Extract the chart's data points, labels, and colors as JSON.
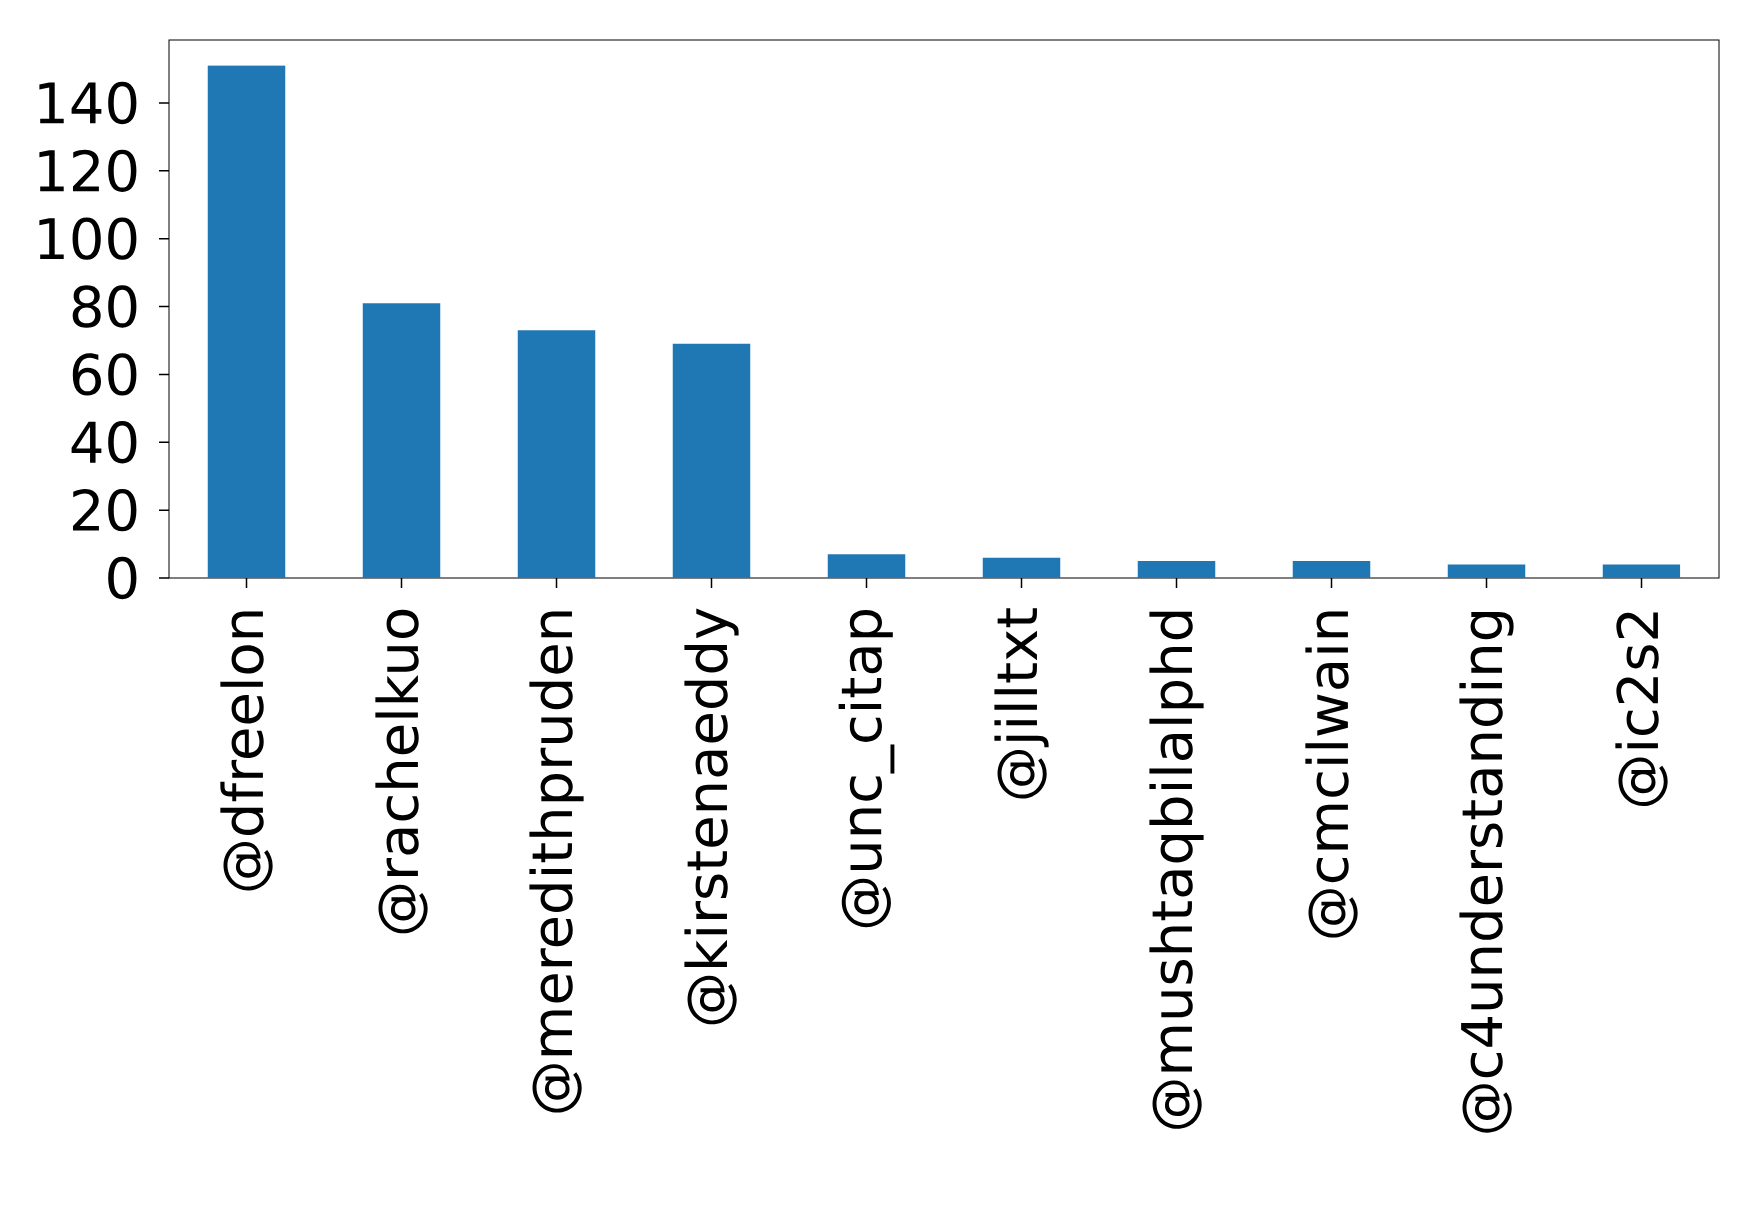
{
  "chart_data": {
    "type": "bar",
    "categories": [
      "@dfreelon",
      "@rachelkuo",
      "@meredithpruden",
      "@kirstenaeddy",
      "@unc_citap",
      "@jilltxt",
      "@mushtaqbilalphd",
      "@cmcilwain",
      "@c4understanding",
      "@ic2s2"
    ],
    "values": [
      151,
      81,
      73,
      69,
      7,
      6,
      5,
      5,
      4,
      4
    ],
    "color": "#1f77b4",
    "ylim": [
      0,
      158.55
    ],
    "yticks": [
      0,
      20,
      40,
      60,
      80,
      100,
      120,
      140
    ],
    "grid": false
  }
}
